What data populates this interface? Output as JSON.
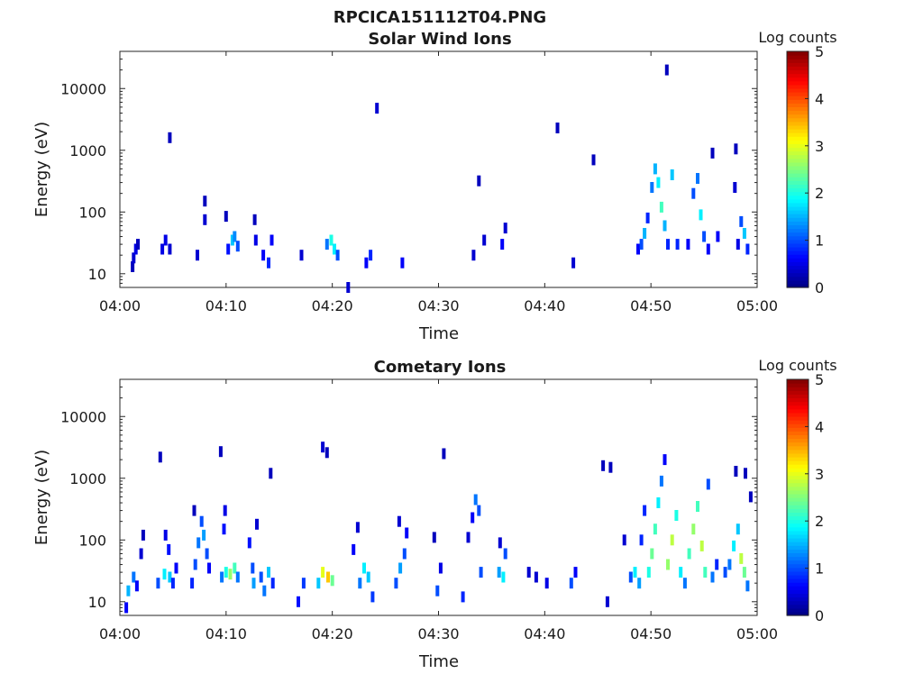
{
  "figure_title": "RPCICA151112T04.PNG",
  "colorbar": {
    "label": "Log counts",
    "ticks": [
      "0",
      "1",
      "2",
      "3",
      "4",
      "5"
    ],
    "range": [
      0,
      5
    ],
    "colormap": "jet"
  },
  "chart_data": [
    {
      "type": "heatmap",
      "title": "Solar Wind Ions",
      "xlabel": "Time",
      "ylabel": "Energy (eV)",
      "x_ticks": [
        "04:00",
        "04:10",
        "04:20",
        "04:30",
        "04:40",
        "04:50",
        "05:00"
      ],
      "xlim_minutes": [
        0,
        60
      ],
      "y_scale": "log",
      "y_ticks": [
        "10",
        "100",
        "1000",
        "10000"
      ],
      "ylim": [
        6,
        40000
      ],
      "cells": [
        {
          "t": 1.2,
          "e": 13,
          "v": 0.3
        },
        {
          "t": 1.3,
          "e": 18,
          "v": 0.4
        },
        {
          "t": 1.5,
          "e": 25,
          "v": 0.5
        },
        {
          "t": 1.7,
          "e": 30,
          "v": 0.3
        },
        {
          "t": 4.0,
          "e": 25,
          "v": 0.5
        },
        {
          "t": 4.3,
          "e": 35,
          "v": 0.5
        },
        {
          "t": 4.7,
          "e": 25,
          "v": 0.4
        },
        {
          "t": 4.7,
          "e": 1600,
          "v": 0.3
        },
        {
          "t": 7.3,
          "e": 20,
          "v": 0.4
        },
        {
          "t": 8.0,
          "e": 75,
          "v": 0.4
        },
        {
          "t": 8.0,
          "e": 150,
          "v": 0.3
        },
        {
          "t": 10.2,
          "e": 25,
          "v": 0.7
        },
        {
          "t": 10.6,
          "e": 35,
          "v": 1.6
        },
        {
          "t": 10.8,
          "e": 40,
          "v": 1.3
        },
        {
          "t": 11.1,
          "e": 28,
          "v": 1.0
        },
        {
          "t": 10.0,
          "e": 85,
          "v": 0.3
        },
        {
          "t": 12.7,
          "e": 75,
          "v": 0.3
        },
        {
          "t": 12.8,
          "e": 35,
          "v": 0.5
        },
        {
          "t": 13.5,
          "e": 20,
          "v": 0.6
        },
        {
          "t": 14.0,
          "e": 15,
          "v": 0.8
        },
        {
          "t": 14.3,
          "e": 35,
          "v": 0.6
        },
        {
          "t": 17.1,
          "e": 20,
          "v": 0.4
        },
        {
          "t": 19.5,
          "e": 30,
          "v": 1.2
        },
        {
          "t": 19.9,
          "e": 35,
          "v": 2.0
        },
        {
          "t": 20.2,
          "e": 25,
          "v": 1.8
        },
        {
          "t": 20.5,
          "e": 20,
          "v": 1.0
        },
        {
          "t": 21.5,
          "e": 6,
          "v": 0.4
        },
        {
          "t": 23.2,
          "e": 15,
          "v": 0.6
        },
        {
          "t": 23.6,
          "e": 20,
          "v": 0.8
        },
        {
          "t": 24.2,
          "e": 4800,
          "v": 0.4
        },
        {
          "t": 26.6,
          "e": 15,
          "v": 0.6
        },
        {
          "t": 33.3,
          "e": 20,
          "v": 0.4
        },
        {
          "t": 33.8,
          "e": 320,
          "v": 0.3
        },
        {
          "t": 34.3,
          "e": 35,
          "v": 0.4
        },
        {
          "t": 36.0,
          "e": 30,
          "v": 0.6
        },
        {
          "t": 36.3,
          "e": 55,
          "v": 0.4
        },
        {
          "t": 41.2,
          "e": 2300,
          "v": 0.3
        },
        {
          "t": 42.7,
          "e": 15,
          "v": 0.4
        },
        {
          "t": 44.6,
          "e": 700,
          "v": 0.3
        },
        {
          "t": 48.8,
          "e": 25,
          "v": 0.6
        },
        {
          "t": 49.1,
          "e": 30,
          "v": 1.0
        },
        {
          "t": 49.4,
          "e": 45,
          "v": 1.5
        },
        {
          "t": 49.7,
          "e": 80,
          "v": 0.8
        },
        {
          "t": 50.1,
          "e": 250,
          "v": 1.2
        },
        {
          "t": 50.4,
          "e": 500,
          "v": 1.5
        },
        {
          "t": 50.7,
          "e": 300,
          "v": 1.8
        },
        {
          "t": 51.0,
          "e": 120,
          "v": 2.2
        },
        {
          "t": 51.3,
          "e": 60,
          "v": 1.5
        },
        {
          "t": 51.6,
          "e": 30,
          "v": 0.8
        },
        {
          "t": 51.5,
          "e": 20000,
          "v": 0.3
        },
        {
          "t": 52.0,
          "e": 400,
          "v": 1.6
        },
        {
          "t": 52.5,
          "e": 30,
          "v": 0.8
        },
        {
          "t": 53.5,
          "e": 30,
          "v": 0.6
        },
        {
          "t": 54.0,
          "e": 200,
          "v": 1.0
        },
        {
          "t": 54.4,
          "e": 350,
          "v": 1.2
        },
        {
          "t": 54.7,
          "e": 90,
          "v": 1.8
        },
        {
          "t": 55.0,
          "e": 40,
          "v": 1.0
        },
        {
          "t": 55.4,
          "e": 25,
          "v": 0.6
        },
        {
          "t": 55.8,
          "e": 900,
          "v": 0.3
        },
        {
          "t": 56.3,
          "e": 40,
          "v": 0.6
        },
        {
          "t": 57.9,
          "e": 250,
          "v": 0.4
        },
        {
          "t": 58.0,
          "e": 1050,
          "v": 0.3
        },
        {
          "t": 58.5,
          "e": 70,
          "v": 1.0
        },
        {
          "t": 58.8,
          "e": 45,
          "v": 1.6
        },
        {
          "t": 59.1,
          "e": 25,
          "v": 0.8
        },
        {
          "t": 58.2,
          "e": 30,
          "v": 0.5
        }
      ]
    },
    {
      "type": "heatmap",
      "title": "Cometary Ions",
      "xlabel": "Time",
      "ylabel": "Energy (eV)",
      "x_ticks": [
        "04:00",
        "04:10",
        "04:20",
        "04:30",
        "04:40",
        "04:50",
        "05:00"
      ],
      "xlim_minutes": [
        0,
        60
      ],
      "y_scale": "log",
      "y_ticks": [
        "10",
        "100",
        "1000",
        "10000"
      ],
      "ylim": [
        6,
        40000
      ],
      "cells": [
        {
          "t": 0.6,
          "e": 8,
          "v": 0.6
        },
        {
          "t": 0.8,
          "e": 15,
          "v": 1.5
        },
        {
          "t": 1.3,
          "e": 25,
          "v": 1.2
        },
        {
          "t": 1.6,
          "e": 18,
          "v": 0.6
        },
        {
          "t": 2.0,
          "e": 60,
          "v": 0.4
        },
        {
          "t": 2.2,
          "e": 120,
          "v": 0.3
        },
        {
          "t": 3.8,
          "e": 2200,
          "v": 0.3
        },
        {
          "t": 3.6,
          "e": 20,
          "v": 1.0
        },
        {
          "t": 4.2,
          "e": 28,
          "v": 1.8
        },
        {
          "t": 4.7,
          "e": 25,
          "v": 1.6
        },
        {
          "t": 5.0,
          "e": 20,
          "v": 0.8
        },
        {
          "t": 4.3,
          "e": 120,
          "v": 0.5
        },
        {
          "t": 4.6,
          "e": 70,
          "v": 0.7
        },
        {
          "t": 5.3,
          "e": 35,
          "v": 0.6
        },
        {
          "t": 6.8,
          "e": 20,
          "v": 0.8
        },
        {
          "t": 7.1,
          "e": 40,
          "v": 1.0
        },
        {
          "t": 7.4,
          "e": 90,
          "v": 1.2
        },
        {
          "t": 7.7,
          "e": 200,
          "v": 1.0
        },
        {
          "t": 7.9,
          "e": 120,
          "v": 1.4
        },
        {
          "t": 8.2,
          "e": 60,
          "v": 1.0
        },
        {
          "t": 8.4,
          "e": 35,
          "v": 0.6
        },
        {
          "t": 7.0,
          "e": 300,
          "v": 0.3
        },
        {
          "t": 9.6,
          "e": 25,
          "v": 1.2
        },
        {
          "t": 10.0,
          "e": 30,
          "v": 2.0
        },
        {
          "t": 10.4,
          "e": 28,
          "v": 2.6
        },
        {
          "t": 10.8,
          "e": 35,
          "v": 2.2
        },
        {
          "t": 11.1,
          "e": 25,
          "v": 1.2
        },
        {
          "t": 9.8,
          "e": 150,
          "v": 0.7
        },
        {
          "t": 9.9,
          "e": 300,
          "v": 0.5
        },
        {
          "t": 9.5,
          "e": 2700,
          "v": 0.3
        },
        {
          "t": 12.2,
          "e": 90,
          "v": 0.7
        },
        {
          "t": 12.5,
          "e": 35,
          "v": 1.0
        },
        {
          "t": 12.6,
          "e": 20,
          "v": 1.4
        },
        {
          "t": 12.9,
          "e": 180,
          "v": 0.4
        },
        {
          "t": 13.3,
          "e": 25,
          "v": 1.0
        },
        {
          "t": 13.6,
          "e": 15,
          "v": 1.2
        },
        {
          "t": 14.0,
          "e": 30,
          "v": 1.6
        },
        {
          "t": 14.4,
          "e": 20,
          "v": 0.8
        },
        {
          "t": 14.2,
          "e": 1200,
          "v": 0.3
        },
        {
          "t": 16.8,
          "e": 10,
          "v": 0.7
        },
        {
          "t": 17.3,
          "e": 20,
          "v": 0.9
        },
        {
          "t": 18.7,
          "e": 20,
          "v": 1.6
        },
        {
          "t": 19.1,
          "e": 30,
          "v": 3.0
        },
        {
          "t": 19.6,
          "e": 25,
          "v": 3.4
        },
        {
          "t": 20.0,
          "e": 22,
          "v": 2.4
        },
        {
          "t": 19.1,
          "e": 3200,
          "v": 0.4
        },
        {
          "t": 19.5,
          "e": 2600,
          "v": 0.3
        },
        {
          "t": 22.0,
          "e": 70,
          "v": 0.6
        },
        {
          "t": 22.4,
          "e": 160,
          "v": 0.4
        },
        {
          "t": 22.6,
          "e": 20,
          "v": 1.2
        },
        {
          "t": 23.0,
          "e": 35,
          "v": 1.8
        },
        {
          "t": 23.4,
          "e": 25,
          "v": 1.6
        },
        {
          "t": 23.8,
          "e": 12,
          "v": 0.9
        },
        {
          "t": 26.0,
          "e": 20,
          "v": 1.0
        },
        {
          "t": 26.4,
          "e": 35,
          "v": 1.4
        },
        {
          "t": 26.8,
          "e": 60,
          "v": 1.0
        },
        {
          "t": 27.0,
          "e": 130,
          "v": 0.6
        },
        {
          "t": 26.3,
          "e": 200,
          "v": 0.4
        },
        {
          "t": 29.6,
          "e": 110,
          "v": 0.3
        },
        {
          "t": 29.9,
          "e": 15,
          "v": 1.0
        },
        {
          "t": 30.2,
          "e": 35,
          "v": 0.5
        },
        {
          "t": 30.5,
          "e": 2500,
          "v": 0.3
        },
        {
          "t": 32.3,
          "e": 12,
          "v": 0.8
        },
        {
          "t": 32.8,
          "e": 110,
          "v": 0.4
        },
        {
          "t": 33.2,
          "e": 230,
          "v": 0.6
        },
        {
          "t": 33.5,
          "e": 450,
          "v": 1.2
        },
        {
          "t": 33.8,
          "e": 300,
          "v": 1.0
        },
        {
          "t": 34.0,
          "e": 30,
          "v": 1.0
        },
        {
          "t": 35.7,
          "e": 30,
          "v": 1.4
        },
        {
          "t": 36.1,
          "e": 25,
          "v": 1.8
        },
        {
          "t": 36.3,
          "e": 60,
          "v": 1.0
        },
        {
          "t": 35.8,
          "e": 90,
          "v": 0.4
        },
        {
          "t": 38.5,
          "e": 30,
          "v": 0.4
        },
        {
          "t": 39.2,
          "e": 25,
          "v": 0.4
        },
        {
          "t": 40.2,
          "e": 20,
          "v": 0.5
        },
        {
          "t": 42.5,
          "e": 20,
          "v": 1.0
        },
        {
          "t": 42.9,
          "e": 30,
          "v": 0.6
        },
        {
          "t": 45.9,
          "e": 10,
          "v": 0.4
        },
        {
          "t": 45.5,
          "e": 1600,
          "v": 0.3
        },
        {
          "t": 46.2,
          "e": 1500,
          "v": 0.3
        },
        {
          "t": 47.5,
          "e": 100,
          "v": 0.4
        },
        {
          "t": 48.1,
          "e": 25,
          "v": 1.0
        },
        {
          "t": 48.5,
          "e": 30,
          "v": 1.8
        },
        {
          "t": 48.9,
          "e": 20,
          "v": 1.4
        },
        {
          "t": 49.1,
          "e": 100,
          "v": 0.8
        },
        {
          "t": 49.4,
          "e": 300,
          "v": 0.8
        },
        {
          "t": 49.8,
          "e": 30,
          "v": 2.0
        },
        {
          "t": 50.1,
          "e": 60,
          "v": 2.4
        },
        {
          "t": 50.4,
          "e": 150,
          "v": 2.2
        },
        {
          "t": 50.7,
          "e": 400,
          "v": 1.8
        },
        {
          "t": 51.0,
          "e": 900,
          "v": 1.2
        },
        {
          "t": 51.3,
          "e": 2000,
          "v": 0.6
        },
        {
          "t": 51.6,
          "e": 40,
          "v": 2.6
        },
        {
          "t": 52.0,
          "e": 100,
          "v": 2.8
        },
        {
          "t": 52.4,
          "e": 250,
          "v": 2.0
        },
        {
          "t": 52.8,
          "e": 30,
          "v": 1.8
        },
        {
          "t": 53.2,
          "e": 20,
          "v": 1.2
        },
        {
          "t": 53.6,
          "e": 60,
          "v": 2.2
        },
        {
          "t": 54.0,
          "e": 150,
          "v": 2.6
        },
        {
          "t": 54.4,
          "e": 350,
          "v": 2.2
        },
        {
          "t": 54.8,
          "e": 80,
          "v": 2.8
        },
        {
          "t": 55.1,
          "e": 30,
          "v": 2.2
        },
        {
          "t": 55.4,
          "e": 800,
          "v": 1.0
        },
        {
          "t": 55.8,
          "e": 25,
          "v": 1.2
        },
        {
          "t": 56.2,
          "e": 40,
          "v": 0.8
        },
        {
          "t": 57.0,
          "e": 30,
          "v": 1.0
        },
        {
          "t": 57.4,
          "e": 40,
          "v": 1.2
        },
        {
          "t": 57.8,
          "e": 80,
          "v": 1.8
        },
        {
          "t": 58.2,
          "e": 150,
          "v": 1.6
        },
        {
          "t": 58.5,
          "e": 50,
          "v": 2.8
        },
        {
          "t": 58.8,
          "e": 30,
          "v": 2.4
        },
        {
          "t": 59.1,
          "e": 18,
          "v": 1.2
        },
        {
          "t": 58.0,
          "e": 1300,
          "v": 0.3
        },
        {
          "t": 58.9,
          "e": 1200,
          "v": 0.3
        },
        {
          "t": 59.4,
          "e": 500,
          "v": 0.3
        }
      ]
    }
  ]
}
